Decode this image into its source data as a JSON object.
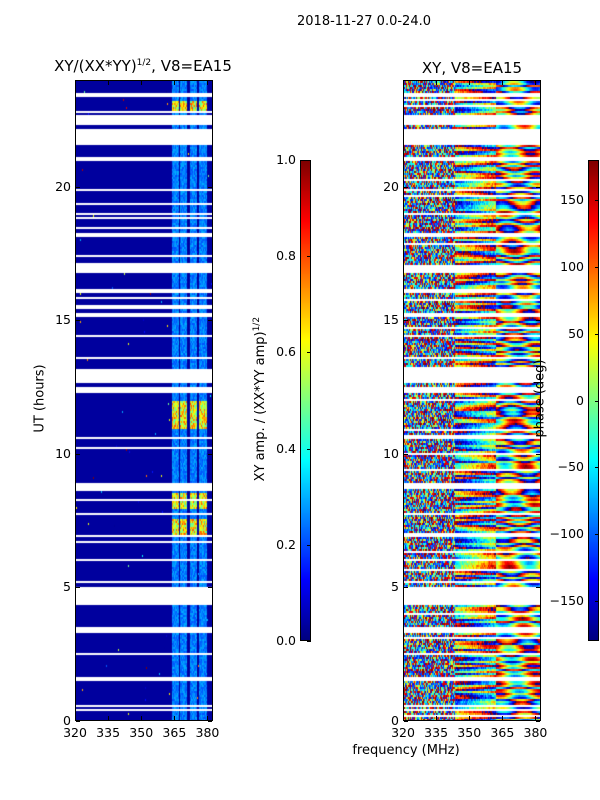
{
  "suptitle": "2018-11-27 0.0-24.0",
  "colors": {
    "colormap": "jet",
    "flagged": "#ffffff"
  },
  "chart_data": [
    {
      "type": "heatmap",
      "title_main": "XY/(XX*YY)",
      "title_sup": "1/2",
      "title_tail": ", V8=EA15",
      "xlabel": "frequency (MHz)",
      "ylabel": "UT (hours)",
      "xlim": [
        320,
        382.5
      ],
      "ylim": [
        0,
        24
      ],
      "xticks": [
        "320",
        "335",
        "350",
        "365",
        "380"
      ],
      "xtick_values": [
        320,
        335,
        350,
        365,
        380
      ],
      "yticks": [
        "0",
        "5",
        "10",
        "15",
        "20"
      ],
      "ytick_values": [
        0,
        5,
        10,
        15,
        20
      ],
      "colorbar": {
        "label_main": "XY amp. / (XX*YY amp)",
        "label_sup": "1/2",
        "range": [
          0,
          1
        ],
        "ticks": [
          "0.0",
          "0.2",
          "0.4",
          "0.6",
          "0.8",
          "1.0"
        ],
        "tick_values": [
          0,
          0.2,
          0.4,
          0.6,
          0.8,
          1.0
        ]
      },
      "description_values": {
        "background_level": 0.03,
        "band_channels_mhz": [
          [
            364,
            367
          ],
          [
            367.5,
            371
          ],
          [
            372,
            375.5
          ],
          [
            376.5,
            380
          ]
        ],
        "band_level": 0.2,
        "hot_intervals_hours": [
          [
            22.8,
            23.3
          ],
          [
            11,
            12
          ],
          [
            8,
            8.6
          ],
          [
            7,
            7.6
          ]
        ],
        "hot_level": 0.6
      }
    },
    {
      "type": "heatmap",
      "title": "XY, V8=EA15",
      "xlim": [
        320,
        382.5
      ],
      "ylim": [
        0,
        24
      ],
      "xticks": [
        "320",
        "335",
        "350",
        "365",
        "380"
      ],
      "xtick_values": [
        320,
        335,
        350,
        365,
        380
      ],
      "yticks": [
        "0",
        "5",
        "10",
        "15",
        "20"
      ],
      "ytick_values": [
        0,
        5,
        10,
        15,
        20
      ],
      "colorbar": {
        "label": "phase (deg)",
        "range": [
          -180,
          180
        ],
        "ticks": [
          "−150",
          "−100",
          "−50",
          "0",
          "50",
          "100",
          "150"
        ],
        "tick_values": [
          -150,
          -100,
          -50,
          0,
          50,
          100,
          150
        ]
      }
    }
  ],
  "flagged_intervals_hours": [
    [
      0.35,
      0.45
    ],
    [
      0.55,
      0.6
    ],
    [
      1.5,
      1.65
    ],
    [
      2.5,
      2.55
    ],
    [
      3.3,
      3.5
    ],
    [
      4.35,
      5.0
    ],
    [
      5.2,
      5.25
    ],
    [
      6.0,
      6.05
    ],
    [
      6.9,
      7.0
    ],
    [
      7.7,
      7.8
    ],
    [
      8.7,
      8.95
    ],
    [
      9.9,
      9.95
    ],
    [
      10.6,
      10.65
    ],
    [
      12.3,
      12.55
    ],
    [
      12.7,
      13.2
    ],
    [
      13.6,
      13.7
    ],
    [
      14.4,
      14.5
    ],
    [
      15.2,
      15.3
    ],
    [
      16.1,
      16.2
    ],
    [
      16.9,
      17.1
    ],
    [
      18.2,
      18.3
    ],
    [
      19.0,
      19.1
    ],
    [
      19.9,
      20.0
    ],
    [
      21.0,
      21.2
    ],
    [
      21.6,
      22.2
    ],
    [
      22.4,
      22.75
    ],
    [
      23.4,
      23.55
    ]
  ]
}
